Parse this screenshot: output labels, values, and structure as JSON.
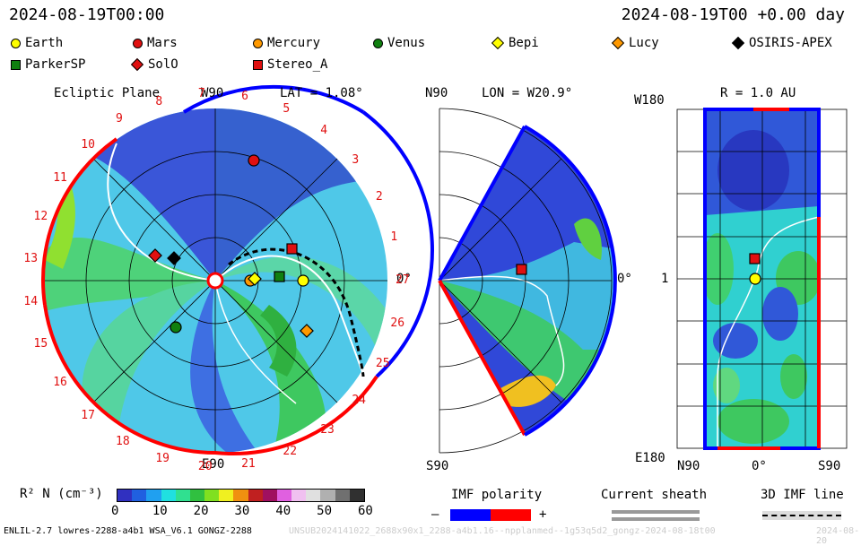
{
  "header": {
    "time_left": "2024-08-19T00:00",
    "time_right": "2024-08-19T00 +0.00 day"
  },
  "legend": [
    {
      "name": "Earth",
      "shape": "circle",
      "color": "#ffff00"
    },
    {
      "name": "Mars",
      "shape": "circle",
      "color": "#e01010"
    },
    {
      "name": "Mercury",
      "shape": "circle",
      "color": "#ff9900"
    },
    {
      "name": "Venus",
      "shape": "circle",
      "color": "#108010"
    },
    {
      "name": "Bepi",
      "shape": "diamond",
      "color": "#ffff00"
    },
    {
      "name": "Lucy",
      "shape": "diamond",
      "color": "#ff9900"
    },
    {
      "name": "OSIRIS-APEX",
      "shape": "diamond",
      "color": "#000000"
    },
    {
      "name": "ParkerSP",
      "shape": "square",
      "color": "#108010"
    },
    {
      "name": "SolO",
      "shape": "diamond",
      "color": "#e01010"
    },
    {
      "name": "Stereo_A",
      "shape": "square",
      "color": "#e01010"
    }
  ],
  "ecliptic": {
    "title": "Ecliptic Plane",
    "lat": "LAT = 1.08°",
    "top": "W90",
    "bottom": "E90",
    "right": "0°",
    "ticks": [
      "1",
      "2",
      "3",
      "4",
      "5",
      "6",
      "7",
      "8",
      "9",
      "10",
      "11",
      "12",
      "13",
      "14",
      "15",
      "16",
      "17",
      "18",
      "19",
      "20",
      "21",
      "22",
      "23",
      "24",
      "25",
      "26",
      "27"
    ]
  },
  "meridional": {
    "title": "LON = W20.9°",
    "top": "N90",
    "bottom": "S90",
    "right": "0°"
  },
  "radial": {
    "title": "R = 1.0 AU",
    "top_left": "W180",
    "mid_left": "1",
    "bottom_left": "E180",
    "bottom_labels": [
      "N90",
      "0°",
      "S90"
    ]
  },
  "colorbar": {
    "label": "R² N (cm⁻³)",
    "ticks": [
      "0",
      "10",
      "20",
      "30",
      "40",
      "50",
      "60"
    ],
    "colors": [
      "#3030c0",
      "#2060e0",
      "#20a0f0",
      "#20e0e0",
      "#30e090",
      "#30c040",
      "#80e020",
      "#f0f020",
      "#f09010",
      "#c02020",
      "#a01060",
      "#e060e0",
      "#f0c0f0",
      "#e0e0e0",
      "#b0b0b0",
      "#707070",
      "#303030"
    ]
  },
  "imf": {
    "label": "IMF polarity",
    "minus": "–",
    "plus": "+",
    "neg_color": "#0000ff",
    "pos_color": "#ff0000"
  },
  "current_sheath": {
    "label": "Current sheath"
  },
  "imf_line": {
    "label": "3D IMF line"
  },
  "footer": {
    "left": "ENLIL-2.7 lowres-2288-a4b1 WSA_V6.1 GONGZ-2288",
    "center": "UNSUB2024141022_2688x90x1_2288-a4b1.16--npplanmed--1g53q5d2_gongz-2024-08-18t00",
    "right": "2024-08-20"
  }
}
